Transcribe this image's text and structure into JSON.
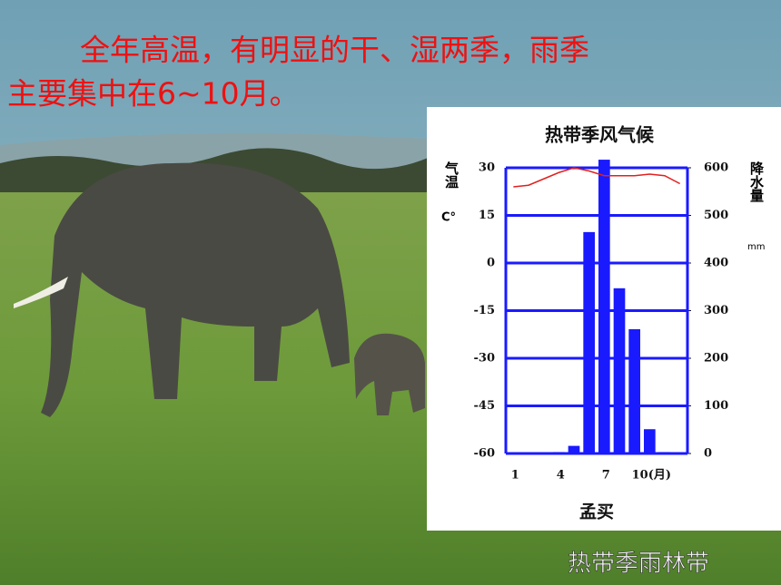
{
  "slide": {
    "heading_lines": [
      "全年高温，有明显的干、湿两季，雨季",
      "主要集中在6~10月。"
    ],
    "caption": "热带季雨林带"
  },
  "chart_data": {
    "type": "combo",
    "title": "热带季风气候",
    "location": "孟买",
    "categories": [
      "1",
      null,
      null,
      "4",
      null,
      null,
      "7",
      null,
      null,
      "10(月)",
      null,
      null
    ],
    "series": [
      {
        "name": "降水量",
        "type": "bar",
        "axis": "y2",
        "color": "#1a1aff",
        "values": [
          1,
          1,
          1,
          3,
          16,
          465,
          617,
          347,
          261,
          51,
          3,
          1
        ]
      },
      {
        "name": "气温",
        "type": "line",
        "axis": "y",
        "color": "#e02020",
        "values": [
          24,
          24.5,
          26.5,
          28.5,
          30,
          29,
          27.5,
          27.5,
          27.5,
          28,
          27.5,
          25
        ]
      }
    ],
    "ylabel": "气温",
    "ylabel_unit": "C°",
    "y2label": "降水量",
    "y2label_unit": "mm",
    "ylim": [
      -60,
      30
    ],
    "yticks": [
      30,
      15,
      0,
      -15,
      -30,
      -45,
      -60
    ],
    "y2lim": [
      0,
      600
    ],
    "y2ticks": [
      600,
      500,
      400,
      300,
      200,
      100,
      0
    ],
    "grid": true,
    "grid_color": "#1a1aff"
  }
}
